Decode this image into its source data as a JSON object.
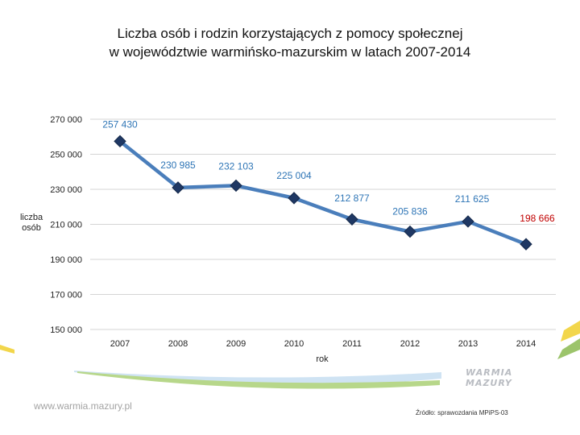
{
  "title": {
    "line1": "Liczba osób i rodzin korzystających z pomocy społecznej",
    "line2": "w województwie warmińsko-mazurskim w latach 2007-2014"
  },
  "chart_data": {
    "type": "line",
    "x": [
      "2007",
      "2008",
      "2009",
      "2010",
      "2011",
      "2012",
      "2013",
      "2014"
    ],
    "series": [
      {
        "values": [
          257430,
          230985,
          232103,
          225004,
          212877,
          205836,
          211625,
          198666
        ],
        "labels": [
          "257 430",
          "230 985",
          "232 103",
          "225 004",
          "212 877",
          "205 836",
          "211 625",
          "198 666"
        ]
      }
    ],
    "ylim": [
      150000,
      270000
    ],
    "yticks": [
      150000,
      170000,
      190000,
      210000,
      230000,
      250000,
      270000
    ],
    "ytick_labels": [
      "150 000",
      "170 000",
      "190 000",
      "210 000",
      "230 000",
      "250 000",
      "270 000"
    ],
    "ylabel_line1": "liczba",
    "ylabel_line2": "osób",
    "xlabel": "rok",
    "grid": true,
    "line_color": "#4a7ebb",
    "marker_color": "#1f3864",
    "label_color": "#2e75b6",
    "last_label_color": "#c00000"
  },
  "footer": {
    "url": "www.warmia.mazury.pl",
    "source": "Źródło: sprawozdania MPiPS-03",
    "logo_line1": "WARMIA",
    "logo_line2": "MAZURY"
  }
}
